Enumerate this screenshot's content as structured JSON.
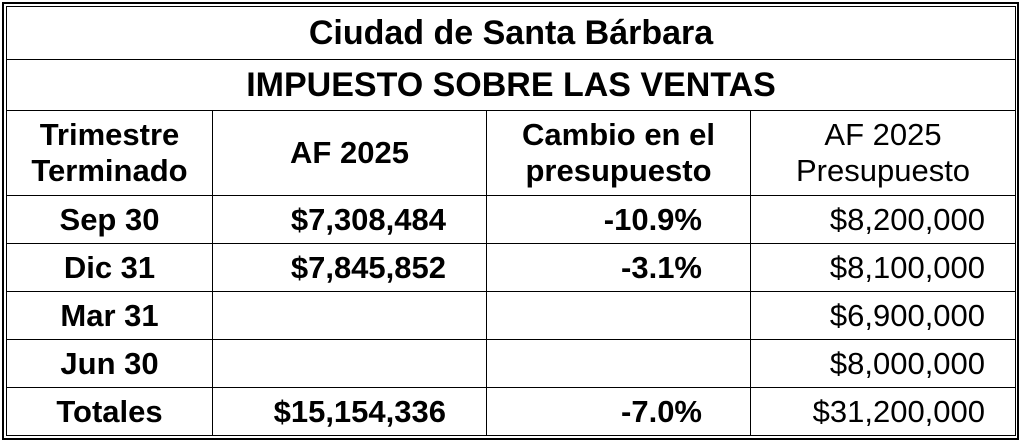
{
  "title": "Ciudad de Santa Bárbara",
  "subtitle": "IMPUESTO SOBRE LAS VENTAS",
  "columns": [
    {
      "line1": "Trimestre",
      "line2": "Terminado"
    },
    {
      "line1": "AF 2025",
      "line2": ""
    },
    {
      "line1": "Cambio en el",
      "line2": "presupuesto"
    },
    {
      "line1": "AF 2025",
      "line2": "Presupuesto"
    }
  ],
  "rows": [
    {
      "quarter": "Sep 30",
      "af": "$7,308,484",
      "change": "-10.9%",
      "budget": "$8,200,000"
    },
    {
      "quarter": "Dic 31",
      "af": "$7,845,852",
      "change": "-3.1%",
      "budget": "$8,100,000"
    },
    {
      "quarter": "Mar 31",
      "af": "",
      "change": "",
      "budget": "$6,900,000"
    },
    {
      "quarter": "Jun 30",
      "af": "",
      "change": "",
      "budget": "$8,000,000"
    }
  ],
  "totals": {
    "label": "Totales",
    "af": "$15,154,336",
    "change": "-7.0%",
    "budget": "$31,200,000"
  }
}
